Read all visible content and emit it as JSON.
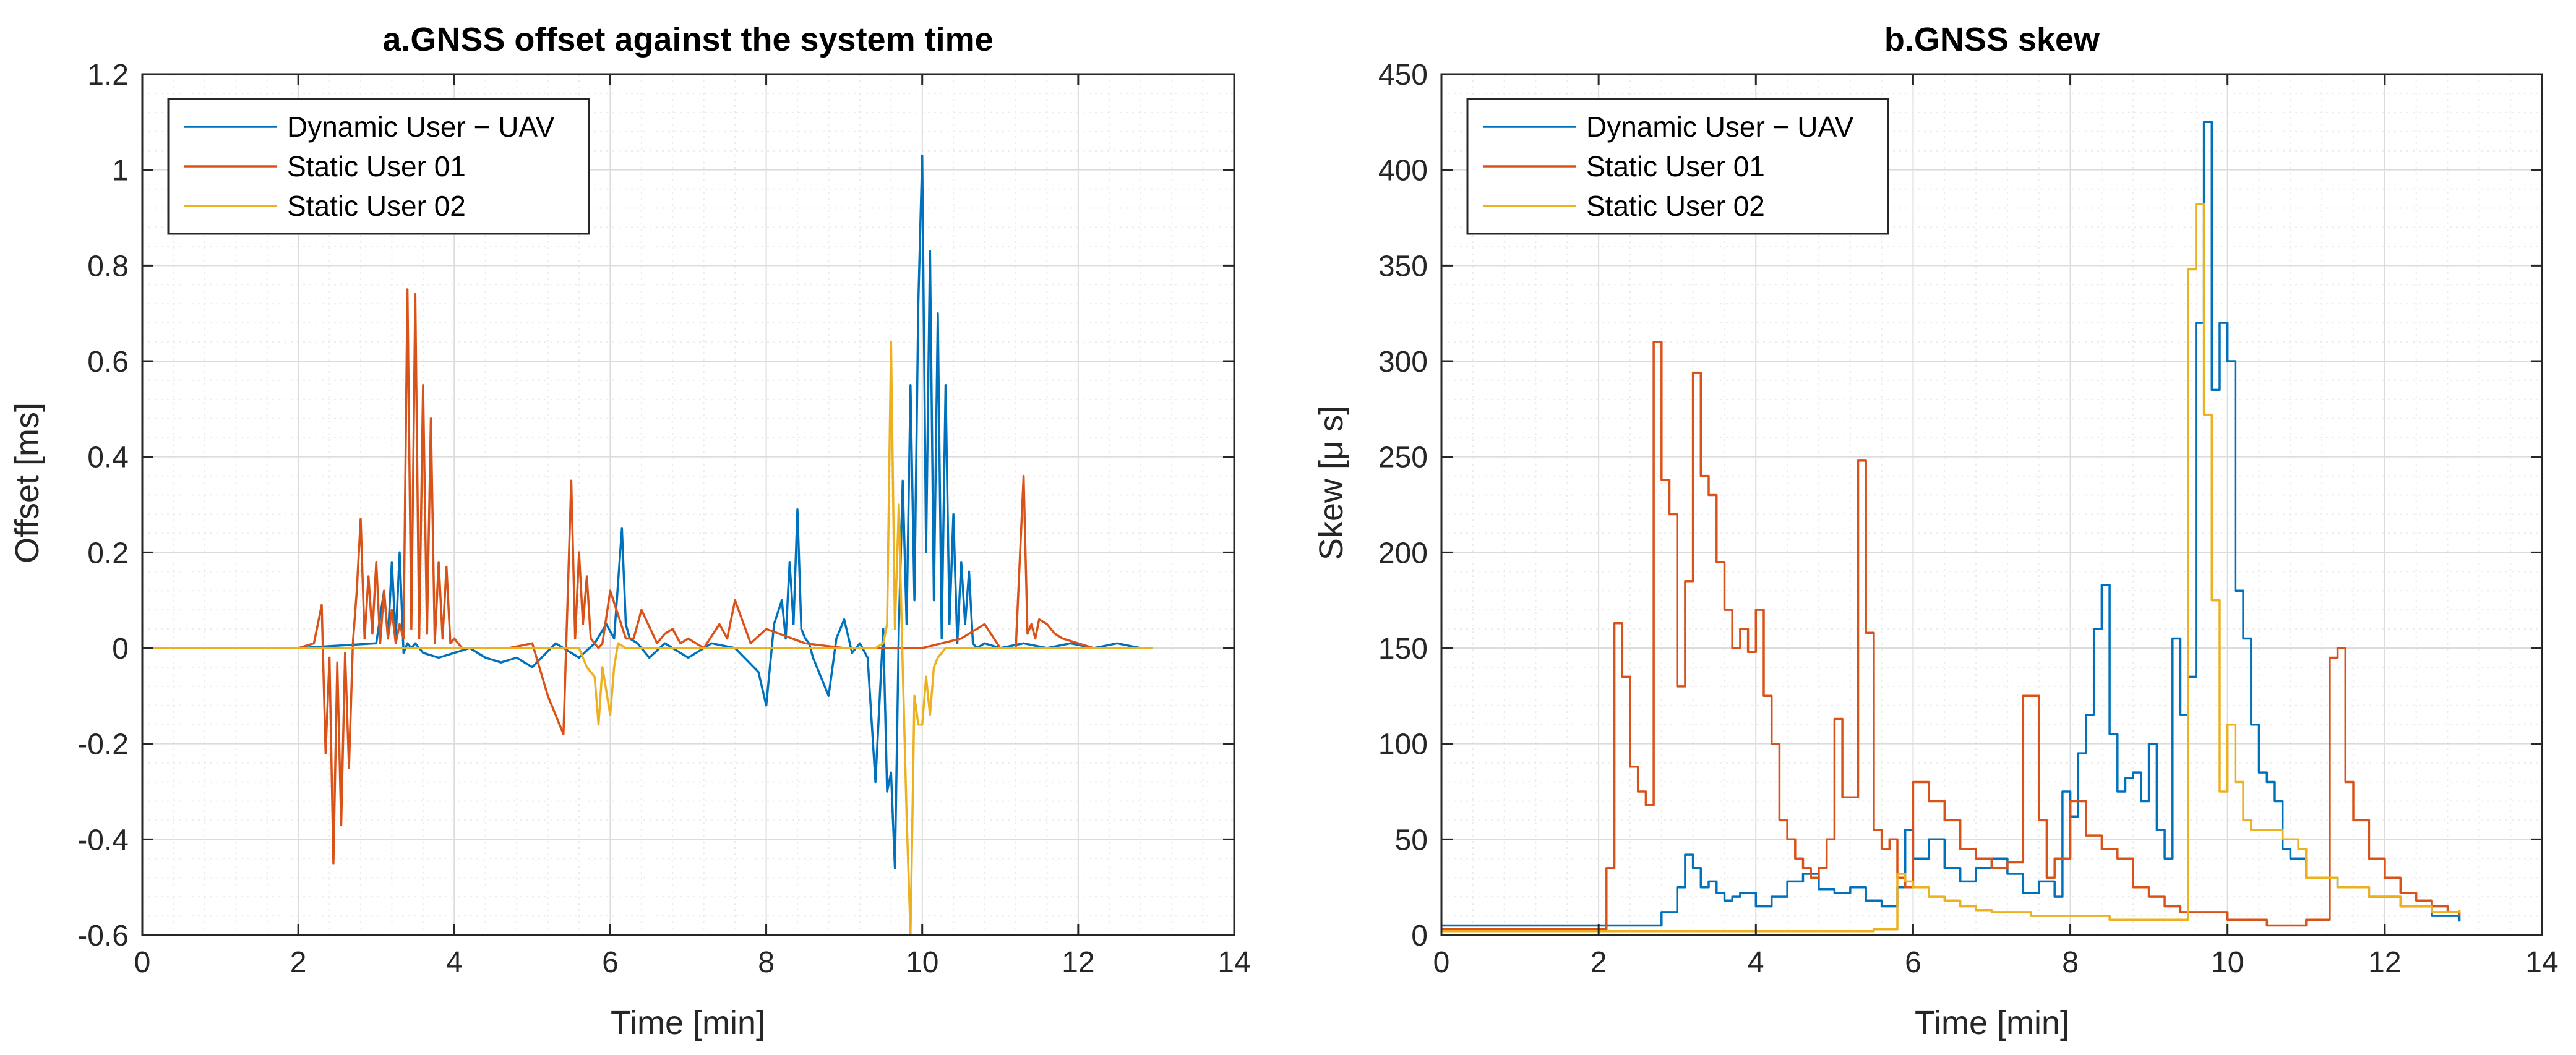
{
  "chart_data": [
    {
      "type": "line",
      "title": "a.GNSS offset against the system time",
      "xlabel": "Time [min]",
      "ylabel": "Offset [ms]",
      "xlim": [
        0,
        14
      ],
      "ylim": [
        -0.6,
        1.2
      ],
      "xticks": [
        0,
        2,
        4,
        6,
        8,
        10,
        12,
        14
      ],
      "xtick_labels": [
        "0",
        "2",
        "4",
        "6",
        "8",
        "10",
        "12",
        "14"
      ],
      "yticks": [
        -0.6,
        -0.4,
        -0.2,
        0,
        0.2,
        0.4,
        0.6,
        0.8,
        1,
        1.2
      ],
      "ytick_labels": [
        "-0.6",
        "-0.4",
        "-0.2",
        "0",
        "0.2",
        "0.4",
        "0.6",
        "0.8",
        "1",
        "1.2"
      ],
      "grid": true,
      "legend_position": "top-left",
      "series": [
        {
          "name": "Dynamic User − UAV",
          "color": "#0072BD",
          "x": [
            0,
            1,
            2,
            3.0,
            3.1,
            3.15,
            3.2,
            3.25,
            3.3,
            3.35,
            3.4,
            3.45,
            3.5,
            3.6,
            3.8,
            4.0,
            4.2,
            4.4,
            4.6,
            4.8,
            5.0,
            5.3,
            5.6,
            5.8,
            5.95,
            6.05,
            6.15,
            6.2,
            6.25,
            6.35,
            6.5,
            6.7,
            7.0,
            7.3,
            7.6,
            7.9,
            8.0,
            8.1,
            8.2,
            8.25,
            8.3,
            8.35,
            8.4,
            8.45,
            8.5,
            8.55,
            8.6,
            8.7,
            8.8,
            8.9,
            9.0,
            9.1,
            9.2,
            9.3,
            9.4,
            9.5,
            9.55,
            9.6,
            9.65,
            9.7,
            9.75,
            9.8,
            9.85,
            9.9,
            9.95,
            10.0,
            10.05,
            10.1,
            10.15,
            10.2,
            10.25,
            10.3,
            10.35,
            10.4,
            10.45,
            10.5,
            10.55,
            10.6,
            10.65,
            10.7,
            10.8,
            11.0,
            11.3,
            11.6,
            11.9,
            12.2,
            12.5,
            12.8,
            12.95
          ],
          "y": [
            0,
            0,
            0,
            0.01,
            0.12,
            0.02,
            0.18,
            0.02,
            0.2,
            -0.01,
            0.01,
            0,
            0.01,
            -0.01,
            -0.02,
            -0.01,
            0,
            -0.02,
            -0.03,
            -0.02,
            -0.04,
            0.01,
            -0.02,
            0.01,
            0.05,
            0.02,
            0.25,
            0.05,
            0.02,
            0.01,
            -0.02,
            0.01,
            -0.02,
            0.01,
            0,
            -0.05,
            -0.12,
            0.05,
            0.1,
            0.02,
            0.18,
            0.05,
            0.29,
            0.04,
            0.02,
            0.01,
            -0.02,
            -0.06,
            -0.1,
            0.02,
            0.06,
            -0.01,
            0.01,
            -0.02,
            -0.28,
            0.04,
            -0.3,
            -0.26,
            -0.46,
            0.04,
            0.35,
            0.05,
            0.55,
            0.1,
            0.72,
            1.03,
            0.2,
            0.83,
            0.1,
            0.7,
            0.02,
            0.55,
            0.05,
            0.28,
            0.01,
            0.18,
            0.05,
            0.16,
            0.01,
            0,
            0.01,
            0,
            0.01,
            0,
            0.01,
            0,
            0.01,
            0,
            0
          ],
          "x_len": 0
        },
        {
          "name": "Static User 01",
          "color": "#D95319",
          "x": [
            0,
            1,
            2,
            2.2,
            2.3,
            2.35,
            2.4,
            2.45,
            2.5,
            2.55,
            2.6,
            2.65,
            2.7,
            2.75,
            2.8,
            2.85,
            2.9,
            2.95,
            3.0,
            3.05,
            3.1,
            3.15,
            3.2,
            3.25,
            3.3,
            3.35,
            3.4,
            3.45,
            3.5,
            3.55,
            3.6,
            3.65,
            3.7,
            3.75,
            3.8,
            3.85,
            3.9,
            3.95,
            4.0,
            4.05,
            4.1,
            4.15,
            4.2,
            4.3,
            4.5,
            4.7,
            5.0,
            5.2,
            5.4,
            5.5,
            5.55,
            5.6,
            5.65,
            5.7,
            5.75,
            5.8,
            5.85,
            5.9,
            6.0,
            6.2,
            6.3,
            6.4,
            6.6,
            6.7,
            6.8,
            6.9,
            7.0,
            7.2,
            7.4,
            7.5,
            7.6,
            7.8,
            8.0,
            8.5,
            9.0,
            9.5,
            10.0,
            10.5,
            10.8,
            11.0,
            11.2,
            11.3,
            11.35,
            11.4,
            11.45,
            11.5,
            11.6,
            11.7,
            11.8,
            12.0,
            12.2,
            12.5,
            12.8,
            12.95
          ],
          "y": [
            0,
            0,
            0,
            0.01,
            0.09,
            -0.22,
            -0.02,
            -0.45,
            -0.03,
            -0.37,
            -0.01,
            -0.25,
            0.01,
            0.12,
            0.27,
            0.02,
            0.15,
            0.03,
            0.18,
            0.01,
            0.12,
            0.02,
            0.08,
            0.01,
            0.05,
            0.02,
            0.75,
            0.04,
            0.74,
            0.02,
            0.55,
            0.03,
            0.48,
            0.01,
            0.18,
            0.02,
            0.17,
            0.01,
            0.02,
            0.01,
            0,
            0,
            0,
            0,
            0,
            0,
            0.01,
            -0.1,
            -0.18,
            0.35,
            0.02,
            0.2,
            0.05,
            0.15,
            0.02,
            0.01,
            0,
            0.01,
            0.12,
            0.02,
            0.02,
            0.08,
            0.01,
            0.03,
            0.04,
            0.01,
            0.02,
            0,
            0.05,
            0.02,
            0.1,
            0.01,
            0.04,
            0.01,
            0,
            0,
            0,
            0.02,
            0.05,
            0,
            0,
            0.36,
            0.03,
            0.05,
            0.02,
            0.06,
            0.05,
            0.03,
            0.02,
            0.01,
            0,
            0,
            0,
            0
          ]
        },
        {
          "name": "Static User 02",
          "color": "#EDB120",
          "x": [
            0,
            1,
            2,
            3,
            4,
            5,
            5.6,
            5.7,
            5.8,
            5.85,
            5.9,
            6.0,
            6.05,
            6.1,
            6.2,
            6.5,
            7,
            8,
            9,
            9.4,
            9.5,
            9.55,
            9.6,
            9.65,
            9.7,
            9.75,
            9.8,
            9.85,
            9.9,
            9.95,
            10.0,
            10.05,
            10.1,
            10.15,
            10.2,
            10.3,
            10.5,
            11,
            12,
            12.95
          ],
          "y": [
            0,
            0,
            0,
            0,
            0,
            0,
            0,
            -0.04,
            -0.06,
            -0.16,
            -0.04,
            -0.14,
            -0.04,
            0.01,
            0,
            0,
            0,
            0,
            0,
            0,
            0.01,
            0.05,
            0.64,
            0.04,
            0.3,
            -0.04,
            -0.35,
            -0.6,
            -0.1,
            -0.16,
            -0.16,
            -0.06,
            -0.14,
            -0.04,
            -0.02,
            0,
            0,
            0,
            0,
            0
          ]
        }
      ]
    },
    {
      "type": "line",
      "title": "b.GNSS skew",
      "xlabel": "Time [min]",
      "ylabel": "Skew [μ s]",
      "xlim": [
        0,
        14
      ],
      "ylim": [
        0,
        450
      ],
      "xticks": [
        0,
        2,
        4,
        6,
        8,
        10,
        12,
        14
      ],
      "xtick_labels": [
        "0",
        "2",
        "4",
        "6",
        "8",
        "10",
        "12",
        "14"
      ],
      "yticks": [
        0,
        50,
        100,
        150,
        200,
        250,
        300,
        350,
        400,
        450
      ],
      "ytick_labels": [
        "0",
        "50",
        "100",
        "150",
        "200",
        "250",
        "300",
        "350",
        "400",
        "450"
      ],
      "grid": true,
      "legend_position": "top-left",
      "series": [
        {
          "name": "Dynamic User − UAV",
          "color": "#0072BD",
          "x": [
            0,
            1.0,
            2.0,
            2.8,
            3.0,
            3.1,
            3.2,
            3.3,
            3.4,
            3.5,
            3.6,
            3.7,
            3.8,
            4.0,
            4.2,
            4.4,
            4.6,
            4.8,
            5.0,
            5.2,
            5.4,
            5.6,
            5.8,
            5.9,
            6.0,
            6.2,
            6.4,
            6.6,
            6.8,
            7.0,
            7.2,
            7.4,
            7.6,
            7.8,
            7.9,
            8.0,
            8.1,
            8.2,
            8.3,
            8.4,
            8.5,
            8.6,
            8.7,
            8.8,
            8.9,
            9.0,
            9.1,
            9.2,
            9.3,
            9.4,
            9.5,
            9.6,
            9.7,
            9.8,
            9.9,
            10.0,
            10.1,
            10.2,
            10.3,
            10.4,
            10.5,
            10.6,
            10.7,
            10.8,
            11.0,
            11.4,
            11.8,
            12.2,
            12.6,
            12.95
          ],
          "y": [
            5,
            5,
            5,
            12,
            25,
            42,
            35,
            25,
            28,
            22,
            18,
            20,
            22,
            15,
            20,
            28,
            32,
            24,
            22,
            25,
            18,
            15,
            25,
            55,
            40,
            50,
            35,
            28,
            35,
            40,
            32,
            22,
            28,
            20,
            75,
            62,
            95,
            115,
            160,
            183,
            105,
            75,
            82,
            85,
            70,
            100,
            55,
            40,
            155,
            115,
            135,
            320,
            425,
            285,
            320,
            300,
            180,
            155,
            110,
            85,
            80,
            70,
            45,
            40,
            30,
            25,
            20,
            15,
            10,
            7
          ]
        },
        {
          "name": "Static User 01",
          "color": "#D95319",
          "x": [
            0,
            1.0,
            2.0,
            2.1,
            2.2,
            2.3,
            2.4,
            2.5,
            2.6,
            2.7,
            2.8,
            2.9,
            3.0,
            3.1,
            3.2,
            3.3,
            3.4,
            3.5,
            3.6,
            3.7,
            3.8,
            3.9,
            4.0,
            4.1,
            4.2,
            4.3,
            4.4,
            4.5,
            4.6,
            4.7,
            4.8,
            4.9,
            5.0,
            5.1,
            5.2,
            5.3,
            5.4,
            5.5,
            5.6,
            5.7,
            5.8,
            5.9,
            6.0,
            6.2,
            6.4,
            6.6,
            6.8,
            7.0,
            7.2,
            7.4,
            7.6,
            7.7,
            7.8,
            8.0,
            8.2,
            8.4,
            8.6,
            8.8,
            9.0,
            9.2,
            9.4,
            10,
            10.5,
            11.0,
            11.3,
            11.4,
            11.5,
            11.6,
            11.8,
            12.0,
            12.2,
            12.4,
            12.6,
            12.8,
            12.95
          ],
          "y": [
            3,
            3,
            3,
            35,
            163,
            135,
            88,
            75,
            68,
            310,
            238,
            220,
            130,
            185,
            294,
            240,
            230,
            195,
            170,
            150,
            160,
            148,
            170,
            125,
            100,
            60,
            50,
            40,
            35,
            30,
            35,
            50,
            113,
            72,
            72,
            248,
            158,
            55,
            45,
            50,
            30,
            25,
            80,
            70,
            60,
            45,
            40,
            35,
            38,
            125,
            60,
            30,
            40,
            70,
            52,
            45,
            40,
            25,
            20,
            15,
            12,
            8,
            5,
            8,
            145,
            150,
            80,
            60,
            40,
            30,
            22,
            18,
            15,
            12,
            10
          ]
        },
        {
          "name": "Static User 02",
          "color": "#EDB120",
          "x": [
            0,
            1.0,
            2.0,
            3.0,
            4.0,
            5.0,
            5.5,
            5.8,
            5.9,
            6.0,
            6.2,
            6.4,
            6.6,
            6.8,
            7.0,
            7.5,
            8.0,
            8.5,
            9.0,
            9.5,
            9.6,
            9.7,
            9.8,
            9.9,
            10.0,
            10.1,
            10.2,
            10.3,
            10.5,
            10.7,
            10.9,
            11.0,
            11.4,
            11.8,
            12.2,
            12.6,
            12.95
          ],
          "y": [
            2,
            2,
            2,
            2,
            2,
            2,
            3,
            32,
            28,
            25,
            20,
            18,
            15,
            13,
            12,
            10,
            10,
            8,
            8,
            348,
            382,
            272,
            175,
            75,
            110,
            80,
            60,
            55,
            55,
            50,
            45,
            30,
            25,
            20,
            15,
            12,
            13
          ]
        }
      ]
    }
  ]
}
